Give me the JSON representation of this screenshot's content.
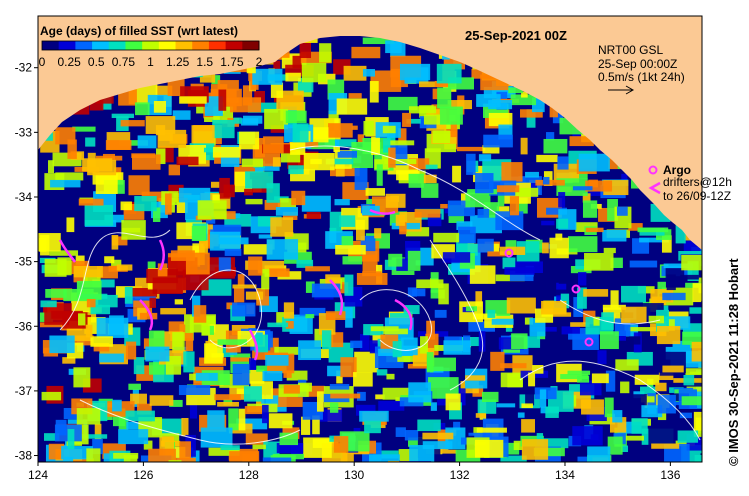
{
  "colorbar": {
    "title": "Age (days) of filled SST (wrt latest)",
    "ticks": [
      "0",
      "0.25",
      "0.5",
      "0.75",
      "1",
      "1.25",
      "1.5",
      "1.75",
      "2"
    ],
    "colors": [
      "#000080",
      "#0000d8",
      "#0066ff",
      "#00bfff",
      "#00e0c0",
      "#40ff40",
      "#c0ff00",
      "#ffff00",
      "#ffc000",
      "#ff8000",
      "#ff3000",
      "#c00000",
      "#800000"
    ]
  },
  "date_title": "25-Sep-2021 00Z",
  "info": {
    "line1": "NRT00 GSL",
    "line2": "25-Sep 00:00Z",
    "line3": "0.5m/s (1kt 24h)"
  },
  "argo_legend": {
    "argo": "Argo",
    "drifters_line1": "drifters@12h",
    "drifters_line2": "to 26/09-12Z"
  },
  "credit": "© IMOS 30-Sep-2021 11:28 Hobart",
  "axes": {
    "x_ticks": [
      "124",
      "126",
      "128",
      "130",
      "132",
      "134",
      "136"
    ],
    "y_ticks": [
      "-32",
      "-33",
      "-34",
      "-35",
      "-36",
      "-37",
      "-38"
    ],
    "xlim": [
      124,
      136.6
    ],
    "ylim": [
      -38.1,
      -31.2
    ]
  },
  "colors": {
    "land": "#fbc994",
    "ocean_base": "#000080",
    "argo": "#ff33ff",
    "contour": "#ffffff"
  }
}
